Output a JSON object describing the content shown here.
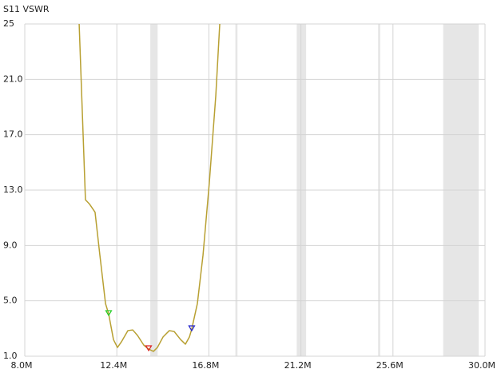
{
  "chart_data": {
    "type": "line",
    "title": "S11 VSWR",
    "x": [
      10.6,
      10.9,
      11.09,
      11.36,
      11.59,
      11.86,
      12.01,
      12.24,
      12.43,
      12.62,
      12.93,
      13.16,
      13.39,
      13.69,
      13.92,
      14.15,
      14.34,
      14.61,
      14.91,
      15.14,
      15.45,
      15.68,
      15.87,
      15.98,
      16.25,
      16.52,
      16.82,
      17.13,
      17.32
    ],
    "series": [
      {
        "name": "S11 VSWR",
        "color": "#b8a032",
        "values": [
          25,
          12.3,
          12.0,
          11.4,
          8.3,
          4.8,
          4.06,
          2.2,
          1.63,
          2.04,
          2.85,
          2.9,
          2.5,
          1.8,
          1.52,
          1.35,
          1.63,
          2.39,
          2.85,
          2.79,
          2.2,
          1.87,
          2.39,
          2.96,
          4.8,
          8.3,
          13.5,
          19.8,
          25
        ]
      }
    ],
    "markers": {
      "x": [
        12.01,
        13.92,
        15.98
      ],
      "values": [
        4.06,
        1.52,
        2.96
      ],
      "colors": [
        "#22cc22",
        "#dd2222",
        "#2222cc"
      ]
    },
    "bands": [
      [
        14,
        14.35
      ],
      [
        18.068,
        18.168
      ],
      [
        21,
        21.45
      ],
      [
        24.89,
        24.99
      ],
      [
        28,
        29.7
      ]
    ],
    "band_color": "#e6e6e6",
    "xlim": [
      8,
      30
    ],
    "xticks": [
      {
        "value": 8,
        "label": "8.0M"
      },
      {
        "value": 12.4,
        "label": "12.4M"
      },
      {
        "value": 16.8,
        "label": "16.8M"
      },
      {
        "value": 21.2,
        "label": "21.2M"
      },
      {
        "value": 25.6,
        "label": "25.6M"
      },
      {
        "value": 30,
        "label": "30.0M"
      }
    ],
    "ylim": [
      1,
      25
    ],
    "yticks": [
      25,
      {
        "value": 21,
        "label": "21.0"
      },
      {
        "value": 17,
        "label": "17.0"
      },
      {
        "value": 13,
        "label": "13.0"
      },
      {
        "value": 9,
        "label": "9.0"
      },
      {
        "value": 5,
        "label": "5.0"
      },
      {
        "value": 1,
        "label": "1.0"
      }
    ],
    "grid": true
  }
}
